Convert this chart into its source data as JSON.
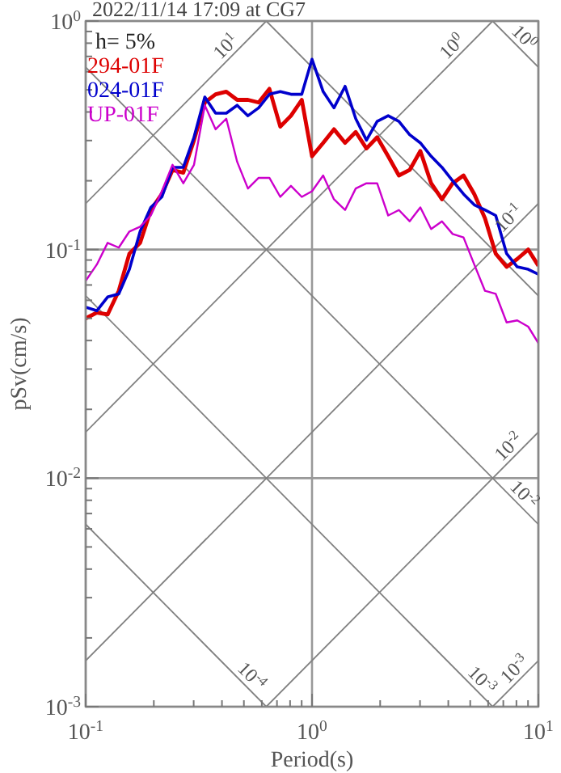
{
  "chart_data": {
    "type": "line",
    "title": "2022/11/14 17:09 at CG7",
    "xlabel": "Period(s)",
    "ylabel": "pSv(cm/s)",
    "log": "xy",
    "grid": true,
    "legend": "top left",
    "xlim": [
      0.1,
      10
    ],
    "ylim": [
      0.001,
      1
    ],
    "xticks": [
      {
        "value": 0.1,
        "label": "10$^{-1}$"
      },
      {
        "value": 0.2,
        "label": null
      },
      {
        "value": 0.3,
        "label": null
      },
      {
        "value": 0.4,
        "label": null
      },
      {
        "value": 0.5,
        "label": null
      },
      {
        "value": 0.6,
        "label": null
      },
      {
        "value": 0.7,
        "label": null
      },
      {
        "value": 0.8,
        "label": null
      },
      {
        "value": 0.9,
        "label": null
      },
      {
        "value": 1,
        "label": "10$^{0}$"
      },
      {
        "value": 2,
        "label": null
      },
      {
        "value": 3,
        "label": null
      },
      {
        "value": 4,
        "label": null
      },
      {
        "value": 5,
        "label": null
      },
      {
        "value": 6,
        "label": null
      },
      {
        "value": 7,
        "label": null
      },
      {
        "value": 8,
        "label": null
      },
      {
        "value": 9,
        "label": null
      },
      {
        "value": 10,
        "label": "10$^{1}$"
      }
    ],
    "yticks": [
      {
        "value": 0.001,
        "label": "10$^{-3}$"
      },
      {
        "value": 0.002,
        "label": null
      },
      {
        "value": 0.003,
        "label": null
      },
      {
        "value": 0.004,
        "label": null
      },
      {
        "value": 0.005,
        "label": null
      },
      {
        "value": 0.006,
        "label": null
      },
      {
        "value": 0.007,
        "label": null
      },
      {
        "value": 0.008,
        "label": null
      },
      {
        "value": 0.009,
        "label": null
      },
      {
        "value": 0.01,
        "label": "10$^{-2}$"
      },
      {
        "value": 0.02,
        "label": null
      },
      {
        "value": 0.03,
        "label": null
      },
      {
        "value": 0.04,
        "label": null
      },
      {
        "value": 0.05,
        "label": null
      },
      {
        "value": 0.06,
        "label": null
      },
      {
        "value": 0.07,
        "label": null
      },
      {
        "value": 0.08,
        "label": null
      },
      {
        "value": 0.09,
        "label": null
      },
      {
        "value": 0.1,
        "label": "10$^{-1}$"
      },
      {
        "value": 0.2,
        "label": null
      },
      {
        "value": 0.3,
        "label": null
      },
      {
        "value": 0.4,
        "label": null
      },
      {
        "value": 0.5,
        "label": null
      },
      {
        "value": 0.6,
        "label": null
      },
      {
        "value": 0.7,
        "label": null
      },
      {
        "value": 0.8,
        "label": null
      },
      {
        "value": 0.9,
        "label": null
      },
      {
        "value": 1,
        "label": "10$^{0}$"
      }
    ],
    "annotations": [
      "h= 5%",
      {
        "text": "10$^{1}$",
        "x": 0.45,
        "y": 0.716
      },
      {
        "text": "10$^{0}$",
        "x": 4.5,
        "y": 0.716
      },
      {
        "text": "10$^{0}$",
        "x": 8.0,
        "y": 0.785
      },
      {
        "text": "10$^{-1}$",
        "x": 8.0,
        "y": 0.127
      },
      {
        "text": "10$^{-2}$",
        "x": 8.0,
        "y": 0.0127
      },
      {
        "text": "10$^{-2}$",
        "x": 8.0,
        "y": 0.00785
      },
      {
        "text": "10$^{-4}$",
        "x": 0.5,
        "y": 0.00126
      },
      {
        "text": "10$^{-3}$",
        "x": 5.2,
        "y": 0.00121
      },
      {
        "text": "10$^{-3}$",
        "x": 8.5,
        "y": 0.00135
      }
    ],
    "series": [
      {
        "type": "line",
        "color": "#808080",
        "x": [
          0.1,
          0.628
        ],
        "values": [
          0.159,
          1
        ]
      },
      {
        "type": "line",
        "color": "#808080",
        "x": [
          0.1,
          6.28
        ],
        "values": [
          0.0159,
          1
        ]
      },
      {
        "type": "line",
        "color": "#808080",
        "x": [
          0.1,
          10
        ],
        "values": [
          0.00159,
          0.159
        ]
      },
      {
        "type": "line",
        "color": "#808080",
        "x": [
          0.628,
          10
        ],
        "values": [
          0.001,
          0.0159
        ]
      },
      {
        "type": "line",
        "color": "#808080",
        "x": [
          6.28,
          10
        ],
        "values": [
          0.001,
          0.00159
        ]
      },
      {
        "type": "line",
        "color": "#808080",
        "x": [
          6.28,
          10
        ],
        "values": [
          1,
          0.628
        ]
      },
      {
        "type": "line",
        "color": "#808080",
        "x": [
          0.628,
          10
        ],
        "values": [
          1,
          0.0628
        ]
      },
      {
        "type": "line",
        "color": "#808080",
        "x": [
          0.1,
          10
        ],
        "values": [
          0.628,
          0.00628
        ]
      },
      {
        "type": "line",
        "color": "#808080",
        "x": [
          0.1,
          6.28
        ],
        "values": [
          0.0628,
          0.001
        ]
      },
      {
        "type": "line",
        "color": "#808080",
        "x": [
          0.1,
          0.628
        ],
        "values": [
          0.00628,
          0.001
        ]
      },
      {
        "type": "line",
        "name": "294-01F",
        "color": "#dd0000",
        "x": [
          0.1,
          0.112,
          0.125,
          0.14,
          0.156,
          0.174,
          0.194,
          0.217,
          0.242,
          0.27,
          0.301,
          0.336,
          0.375,
          0.418,
          0.467,
          0.521,
          0.581,
          0.648,
          0.724,
          0.807,
          0.901,
          1.0,
          1.12,
          1.25,
          1.4,
          1.56,
          1.74,
          1.94,
          2.17,
          2.42,
          2.7,
          3.01,
          3.36,
          3.75,
          4.18,
          4.67,
          5.21,
          5.81,
          6.48,
          7.24,
          8.07,
          9.02,
          10
        ],
        "values": [
          0.05,
          0.053,
          0.052,
          0.066,
          0.096,
          0.107,
          0.149,
          0.175,
          0.223,
          0.217,
          0.301,
          0.44,
          0.478,
          0.491,
          0.452,
          0.452,
          0.44,
          0.505,
          0.345,
          0.385,
          0.452,
          0.256,
          0.293,
          0.336,
          0.293,
          0.327,
          0.277,
          0.31,
          0.256,
          0.211,
          0.223,
          0.27,
          0.195,
          0.166,
          0.195,
          0.211,
          0.175,
          0.137,
          0.096,
          0.084,
          0.091,
          0.1,
          0.085
        ]
      },
      {
        "type": "line",
        "name": "024-01F",
        "color": "#0000cc",
        "x": [
          0.1,
          0.112,
          0.125,
          0.14,
          0.156,
          0.174,
          0.194,
          0.217,
          0.242,
          0.27,
          0.301,
          0.336,
          0.375,
          0.418,
          0.467,
          0.521,
          0.581,
          0.648,
          0.724,
          0.807,
          0.901,
          1.0,
          1.12,
          1.25,
          1.4,
          1.56,
          1.74,
          1.94,
          2.17,
          2.42,
          2.7,
          3.01,
          3.36,
          3.75,
          4.18,
          4.67,
          5.21,
          5.81,
          6.48,
          7.24,
          8.07,
          9.02,
          10
        ],
        "values": [
          0.056,
          0.054,
          0.062,
          0.064,
          0.082,
          0.12,
          0.153,
          0.17,
          0.229,
          0.229,
          0.31,
          0.465,
          0.395,
          0.395,
          0.428,
          0.385,
          0.417,
          0.478,
          0.491,
          0.478,
          0.478,
          0.68,
          0.491,
          0.417,
          0.518,
          0.374,
          0.301,
          0.364,
          0.385,
          0.364,
          0.318,
          0.293,
          0.256,
          0.229,
          0.2,
          0.175,
          0.157,
          0.149,
          0.141,
          0.096,
          0.084,
          0.082,
          0.078
        ]
      },
      {
        "type": "line",
        "name": "UP-01F",
        "color": "#cc00cc",
        "x": [
          0.1,
          0.112,
          0.125,
          0.14,
          0.156,
          0.174,
          0.194,
          0.217,
          0.242,
          0.27,
          0.301,
          0.336,
          0.375,
          0.418,
          0.467,
          0.521,
          0.581,
          0.648,
          0.724,
          0.807,
          0.901,
          1.0,
          1.12,
          1.25,
          1.4,
          1.56,
          1.74,
          1.94,
          2.17,
          2.42,
          2.7,
          3.01,
          3.36,
          3.75,
          4.18,
          4.67,
          5.21,
          5.81,
          6.48,
          7.24,
          8.07,
          9.02,
          10
        ],
        "values": [
          0.073,
          0.086,
          0.107,
          0.102,
          0.12,
          0.126,
          0.141,
          0.18,
          0.235,
          0.195,
          0.235,
          0.428,
          0.336,
          0.374,
          0.242,
          0.185,
          0.206,
          0.206,
          0.17,
          0.19,
          0.17,
          0.18,
          0.211,
          0.166,
          0.149,
          0.185,
          0.195,
          0.195,
          0.141,
          0.149,
          0.133,
          0.153,
          0.123,
          0.133,
          0.117,
          0.113,
          0.086,
          0.066,
          0.064,
          0.048,
          0.049,
          0.046,
          0.039
        ]
      }
    ]
  }
}
